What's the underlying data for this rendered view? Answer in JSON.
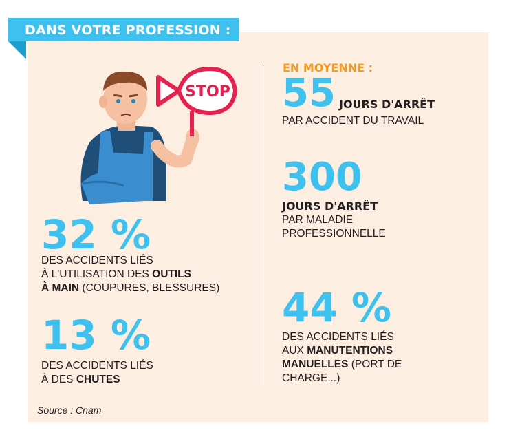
{
  "banner": {
    "title": "DANS VOTRE PROFESSION :"
  },
  "sign": {
    "text": "STOP"
  },
  "left": {
    "stat1": {
      "value": "32 %",
      "line1": "DES ACCIDENTS LIÉS",
      "line2a": "À L'UTILISATION DES ",
      "line2b": "OUTILS",
      "line3a": "À MAIN",
      "line3b": " (COUPURES, BLESSURES)"
    },
    "stat2": {
      "value": "13 %",
      "line1": "DES ACCIDENTS LIÉS",
      "line2a": "À DES ",
      "line2b": "CHUTES"
    }
  },
  "right": {
    "label": "EN MOYENNE :",
    "stat1": {
      "value": "55",
      "unit": "JOURS D'ARRÊT",
      "line": "PAR ACCIDENT DU TRAVAIL"
    },
    "stat2": {
      "value": "300",
      "unit": "JOURS D'ARRÊT",
      "line1": "PAR MALADIE",
      "line2": "PROFESSIONNELLE"
    },
    "stat3": {
      "value": "44 %",
      "line1": "DES ACCIDENTS LIÉS",
      "line2a": "AUX ",
      "line2b": "MANUTENTIONS",
      "line3a": "MANUELLES",
      "line3b": " (PORT DE",
      "line4": "CHARGE...)"
    }
  },
  "source": "Source : Cnam",
  "colors": {
    "accent": "#3ec1ef",
    "orange": "#f39a22",
    "panel": "#fdeee2",
    "sign_red": "#e6204f"
  }
}
